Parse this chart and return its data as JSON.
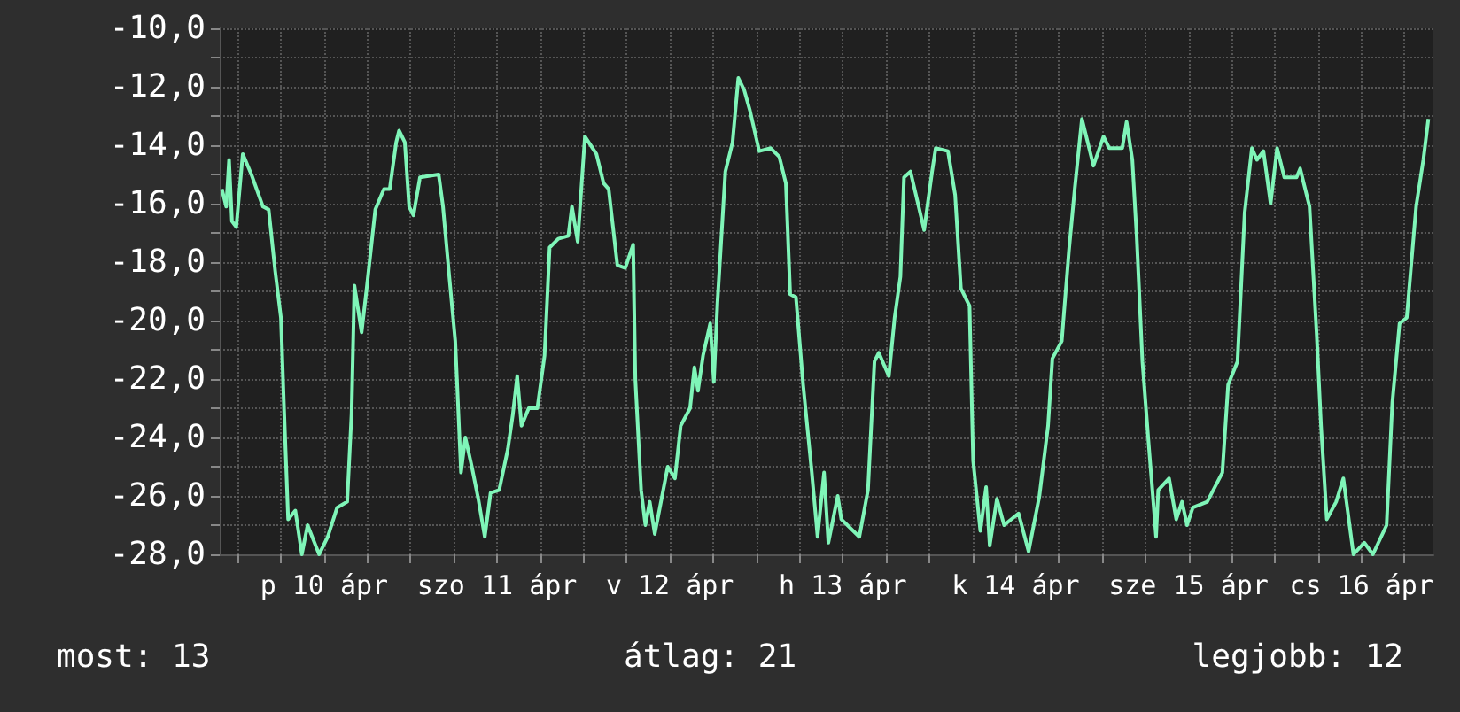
{
  "chart_data": {
    "type": "line",
    "color": "#7ff5b8",
    "grid": true,
    "marker": "none",
    "line_style": "solid",
    "xlim": [
      "--04-09T21:30",
      "--04-16T22:00"
    ],
    "xticks": [
      {
        "value": "--04-10T00:00",
        "label": null
      },
      {
        "value": "--04-10T06:00",
        "label": null
      },
      {
        "value": "--04-10T12:00",
        "label": "p 10 ápr"
      },
      {
        "value": "--04-10T18:00",
        "label": null
      },
      {
        "value": "--04-11T00:00",
        "label": null
      },
      {
        "value": "--04-11T06:00",
        "label": null
      },
      {
        "value": "--04-11T12:00",
        "label": "szo 11 ápr"
      },
      {
        "value": "--04-11T18:00",
        "label": null
      },
      {
        "value": "--04-12T00:00",
        "label": null
      },
      {
        "value": "--04-12T06:00",
        "label": null
      },
      {
        "value": "--04-12T12:00",
        "label": "v 12 ápr"
      },
      {
        "value": "--04-12T18:00",
        "label": null
      },
      {
        "value": "--04-13T00:00",
        "label": null
      },
      {
        "value": "--04-13T06:00",
        "label": null
      },
      {
        "value": "--04-13T12:00",
        "label": "h 13 ápr"
      },
      {
        "value": "--04-13T18:00",
        "label": null
      },
      {
        "value": "--04-14T00:00",
        "label": null
      },
      {
        "value": "--04-14T06:00",
        "label": null
      },
      {
        "value": "--04-14T12:00",
        "label": "k 14 ápr"
      },
      {
        "value": "--04-14T18:00",
        "label": null
      },
      {
        "value": "--04-15T00:00",
        "label": null
      },
      {
        "value": "--04-15T06:00",
        "label": null
      },
      {
        "value": "--04-15T12:00",
        "label": "sze 15 ápr"
      },
      {
        "value": "--04-15T18:00",
        "label": null
      },
      {
        "value": "--04-16T00:00",
        "label": null
      },
      {
        "value": "--04-16T06:00",
        "label": null
      },
      {
        "value": "--04-16T12:00",
        "label": "cs 16 ápr"
      },
      {
        "value": "--04-16T18:00",
        "label": null
      }
    ],
    "ylim": [
      -28,
      -10
    ],
    "yticks": [
      {
        "value": -28,
        "label": "-28,0"
      },
      {
        "value": -27,
        "label": null
      },
      {
        "value": -26,
        "label": "-26,0"
      },
      {
        "value": -25,
        "label": null
      },
      {
        "value": -24,
        "label": "-24,0"
      },
      {
        "value": -23,
        "label": null
      },
      {
        "value": -22,
        "label": "-22,0"
      },
      {
        "value": -21,
        "label": null
      },
      {
        "value": -20,
        "label": "-20,0"
      },
      {
        "value": -19,
        "label": null
      },
      {
        "value": -18,
        "label": "-18,0"
      },
      {
        "value": -17,
        "label": null
      },
      {
        "value": -16,
        "label": "-16,0"
      },
      {
        "value": -15,
        "label": null
      },
      {
        "value": -14,
        "label": "-14,0"
      },
      {
        "value": -13,
        "label": null
      },
      {
        "value": -12,
        "label": "-12,0"
      },
      {
        "value": -11,
        "label": null
      },
      {
        "value": -10,
        "label": "-10,0"
      }
    ],
    "x": [
      "--04-09T21:48",
      "--04-09T22:24",
      "--04-09T22:48",
      "--04-09T23:12",
      "--04-09T23:48",
      "--04-10T00:42",
      "--04-10T01:54",
      "--04-10T03:30",
      "--04-10T04:18",
      "--04-10T05:12",
      "--04-10T06:00",
      "--04-10T06:24",
      "--04-10T07:00",
      "--04-10T08:00",
      "--04-10T08:54",
      "--04-10T09:42",
      "--04-10T10:30",
      "--04-10T11:18",
      "--04-10T12:30",
      "--04-10T13:48",
      "--04-10T15:12",
      "--04-10T15:48",
      "--04-10T16:12",
      "--04-10T17:12",
      "--04-10T17:54",
      "--04-10T19:06",
      "--04-10T20:18",
      "--04-10T21:06",
      "--04-10T22:00",
      "--04-10T22:24",
      "--04-10T23:12",
      "--04-10T23:48",
      "--04-11T00:24",
      "--04-11T01:18",
      "--04-11T03:54",
      "--04-11T04:30",
      "--04-11T05:18",
      "--04-11T06:12",
      "--04-11T07:00",
      "--04-11T07:36",
      "--04-11T08:30",
      "--04-11T09:24",
      "--04-11T10:18",
      "--04-11T11:06",
      "--04-11T12:18",
      "--04-11T13:30",
      "--04-11T14:12",
      "--04-11T14:48",
      "--04-11T15:24",
      "--04-11T16:24",
      "--04-11T17:36",
      "--04-11T18:36",
      "--04-11T19:18",
      "--04-11T20:30",
      "--04-11T21:54",
      "--04-11T22:24",
      "--04-11T23:12",
      "--04-12T00:12",
      "--04-12T01:48",
      "--04-12T02:48",
      "--04-12T03:30",
      "--04-12T04:42",
      "--04-12T05:48",
      "--04-12T06:54",
      "--04-12T07:12",
      "--04-12T08:00",
      "--04-12T08:36",
      "--04-12T09:12",
      "--04-12T09:54",
      "--04-12T11:42",
      "--04-12T12:42",
      "--04-12T13:30",
      "--04-12T14:48",
      "--04-12T15:24",
      "--04-12T15:54",
      "--04-12T16:36",
      "--04-12T17:36",
      "--04-12T18:06",
      "--04-12T18:36",
      "--04-12T19:42",
      "--04-12T20:42",
      "--04-12T21:30",
      "--04-12T22:18",
      "--04-12T23:06",
      "--04-13T00:24",
      "--04-13T02:00",
      "--04-13T03:12",
      "--04-13T04:06",
      "--04-13T04:42",
      "--04-13T05:30",
      "--04-13T06:30",
      "--04-13T07:42",
      "--04-13T08:30",
      "--04-13T09:24",
      "--04-13T10:00",
      "--04-13T11:18",
      "--04-13T11:48",
      "--04-13T14:18",
      "--04-13T15:30",
      "--04-13T16:24",
      "--04-13T17:00",
      "--04-13T18:24",
      "--04-13T19:12",
      "--04-13T20:00",
      "--04-13T20:30",
      "--04-13T21:24",
      "--04-13T23:18",
      "--04-14T00:24",
      "--04-14T00:54",
      "--04-14T02:36",
      "--04-14T03:36",
      "--04-14T04:24",
      "--04-14T05:36",
      "--04-14T06:06",
      "--04-14T07:06",
      "--04-14T07:54",
      "--04-14T08:24",
      "--04-14T09:24",
      "--04-14T10:24",
      "--04-14T12:24",
      "--04-14T13:48",
      "--04-14T15:18",
      "--04-14T16:30",
      "--04-14T17:06",
      "--04-14T18:24",
      "--04-14T19:24",
      "--04-14T20:12",
      "--04-14T21:12",
      "--04-14T22:48",
      "--04-15T00:12",
      "--04-15T01:00",
      "--04-15T02:48",
      "--04-15T03:24",
      "--04-15T04:12",
      "--04-15T04:48",
      "--04-15T05:36",
      "--04-15T06:24",
      "--04-15T07:30",
      "--04-15T07:48",
      "--04-15T09:18",
      "--04-15T10:18",
      "--04-15T11:06",
      "--04-15T11:48",
      "--04-15T12:36",
      "--04-15T14:36",
      "--04-15T16:42",
      "--04-15T17:30",
      "--04-15T18:48",
      "--04-15T19:48",
      "--04-15T20:48",
      "--04-15T21:30",
      "--04-15T22:24",
      "--04-15T23:24",
      "--04-16T00:18",
      "--04-16T01:18",
      "--04-16T03:00",
      "--04-16T03:30",
      "--04-16T04:48",
      "--04-16T05:48",
      "--04-16T06:24",
      "--04-16T07:12",
      "--04-16T08:30",
      "--04-16T09:30",
      "--04-16T10:54",
      "--04-16T12:24",
      "--04-16T13:36",
      "--04-16T15:30",
      "--04-16T16:18",
      "--04-16T17:18",
      "--04-16T18:18",
      "--04-16T19:36",
      "--04-16T20:36",
      "--04-16T21:18"
    ],
    "values": [
      -15.5,
      -16.1,
      -14.5,
      -16.6,
      -16.8,
      -14.3,
      -15.0,
      -16.1,
      -16.2,
      -18.3,
      -19.9,
      -22.8,
      -26.8,
      -26.5,
      -28.0,
      -27.0,
      -27.5,
      -28.0,
      -27.4,
      -26.4,
      -26.2,
      -23.2,
      -18.8,
      -20.4,
      -18.9,
      -16.2,
      -15.5,
      -15.5,
      -13.9,
      -13.5,
      -13.9,
      -16.1,
      -16.4,
      -15.1,
      -15.0,
      -16.1,
      -18.3,
      -20.7,
      -25.2,
      -24.0,
      -25.0,
      -26.1,
      -27.4,
      -25.9,
      -25.8,
      -24.4,
      -23.2,
      -21.9,
      -23.6,
      -23.0,
      -23.0,
      -21.2,
      -17.5,
      -17.2,
      -17.1,
      -16.1,
      -17.3,
      -13.7,
      -14.3,
      -15.3,
      -15.5,
      -18.1,
      -18.2,
      -17.4,
      -22.0,
      -25.8,
      -27.0,
      -26.2,
      -27.3,
      -25.0,
      -25.4,
      -23.6,
      -23.0,
      -21.6,
      -22.4,
      -21.2,
      -20.1,
      -22.1,
      -19.4,
      -14.9,
      -13.9,
      -11.7,
      -12.1,
      -12.8,
      -14.2,
      -14.1,
      -14.4,
      -15.3,
      -19.1,
      -19.2,
      -22.2,
      -25.2,
      -27.4,
      -25.2,
      -27.6,
      -26.0,
      -26.8,
      -27.4,
      -25.8,
      -21.4,
      -21.1,
      -21.9,
      -19.9,
      -18.5,
      -15.1,
      -14.9,
      -16.9,
      -14.9,
      -14.1,
      -14.2,
      -15.7,
      -18.9,
      -19.5,
      -24.8,
      -27.2,
      -25.7,
      -27.7,
      -26.1,
      -27.0,
      -26.6,
      -27.9,
      -26.0,
      -23.6,
      -21.3,
      -20.7,
      -17.6,
      -15.5,
      -13.1,
      -14.7,
      -13.7,
      -14.1,
      -14.1,
      -13.2,
      -14.5,
      -17.1,
      -21.4,
      -24.0,
      -27.4,
      -25.8,
      -25.4,
      -26.8,
      -26.2,
      -27.0,
      -26.4,
      -26.2,
      -25.2,
      -22.2,
      -21.4,
      -16.3,
      -14.1,
      -14.5,
      -14.2,
      -16.0,
      -14.1,
      -15.1,
      -15.1,
      -14.8,
      -16.1,
      -20.5,
      -23.6,
      -26.8,
      -26.2,
      -25.4,
      -28.0,
      -27.6,
      -28.0,
      -27.0,
      -22.8,
      -20.1,
      -19.9,
      -16.1,
      -14.5,
      -13.1
    ],
    "annotations": [
      "most: 13",
      "átlag: 21",
      "legjobb: 12"
    ]
  }
}
